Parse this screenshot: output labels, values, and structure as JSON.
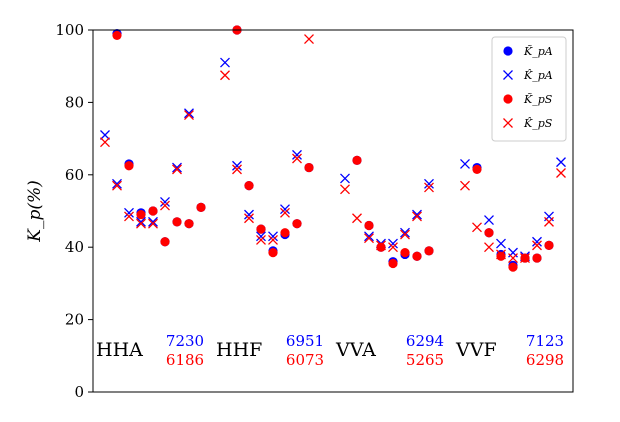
{
  "chart_data": {
    "type": "scatter",
    "ylabel": "K_p(%)",
    "ylim": [
      0,
      100
    ],
    "yticks": [
      0,
      20,
      40,
      60,
      80,
      100
    ],
    "legend": {
      "placement": "top-right",
      "entries": [
        {
          "label": "K̃_pA",
          "marker": "circle",
          "color": "#0000ff"
        },
        {
          "label": "K̂_pA",
          "marker": "x",
          "color": "#0000ff"
        },
        {
          "label": "K̃_pS",
          "marker": "circle",
          "color": "#ff0000"
        },
        {
          "label": "K̂_pS",
          "marker": "x",
          "color": "#ff0000"
        }
      ]
    },
    "groups": [
      {
        "label": "HHA",
        "count_blue": "7230",
        "count_red": "6186"
      },
      {
        "label": "HHF",
        "count_blue": "6951",
        "count_red": "6073"
      },
      {
        "label": "VVA",
        "count_blue": "6294",
        "count_red": "5265"
      },
      {
        "label": "VVF",
        "count_blue": "7123",
        "count_red": "6298"
      }
    ],
    "x": [
      1,
      2,
      3,
      4,
      5,
      6,
      7,
      8,
      9,
      11,
      12,
      13,
      14,
      15,
      16,
      17,
      18,
      19,
      21,
      22,
      23,
      24,
      25,
      26,
      27,
      28,
      29,
      31,
      32,
      33,
      34,
      35,
      36,
      37,
      38,
      39
    ],
    "series": [
      {
        "label": "K̃_pA",
        "marker": "circle",
        "color": "#0000ff",
        "values": [
          null,
          99,
          63,
          49.5,
          50,
          41.5,
          47,
          46.5,
          51,
          null,
          100,
          57,
          45,
          39,
          43.5,
          46.5,
          62,
          null,
          null,
          64,
          46,
          40,
          36,
          38,
          37.5,
          39,
          null,
          null,
          62,
          44,
          38,
          35,
          37,
          37,
          40.5,
          null
        ]
      },
      {
        "label": "K̂_pA",
        "marker": "x",
        "color": "#0000ff",
        "values": [
          71,
          57.5,
          49.5,
          47,
          47,
          52.5,
          62,
          77,
          null,
          91,
          62.5,
          49,
          43,
          43,
          50.5,
          65.5,
          null,
          null,
          59,
          null,
          43,
          41,
          41,
          44,
          49,
          57.5,
          null,
          63,
          null,
          47.5,
          41,
          38.5,
          37.5,
          41.5,
          48.5,
          63.5
        ]
      },
      {
        "label": "K̃_pS",
        "marker": "circle",
        "color": "#ff0000",
        "values": [
          null,
          98.5,
          62.5,
          49,
          50,
          41.5,
          47,
          46.5,
          51,
          null,
          100,
          57,
          45,
          38.5,
          44,
          46.5,
          62,
          null,
          null,
          64,
          46,
          40,
          35.5,
          38.5,
          37.5,
          39,
          null,
          null,
          61.5,
          44,
          37.5,
          34.5,
          37,
          37,
          40.5,
          null
        ]
      },
      {
        "label": "K̂_pS",
        "marker": "x",
        "color": "#ff0000",
        "values": [
          69,
          57,
          48.5,
          46.5,
          46.5,
          51.5,
          61.5,
          76.5,
          null,
          87.5,
          61.5,
          48,
          42,
          42,
          49.5,
          64.5,
          97.5,
          null,
          56,
          48,
          42.5,
          40.5,
          40,
          43.5,
          48.5,
          56.5,
          null,
          57,
          45.5,
          40,
          38,
          37,
          37,
          40.5,
          47,
          60.5
        ]
      }
    ]
  }
}
